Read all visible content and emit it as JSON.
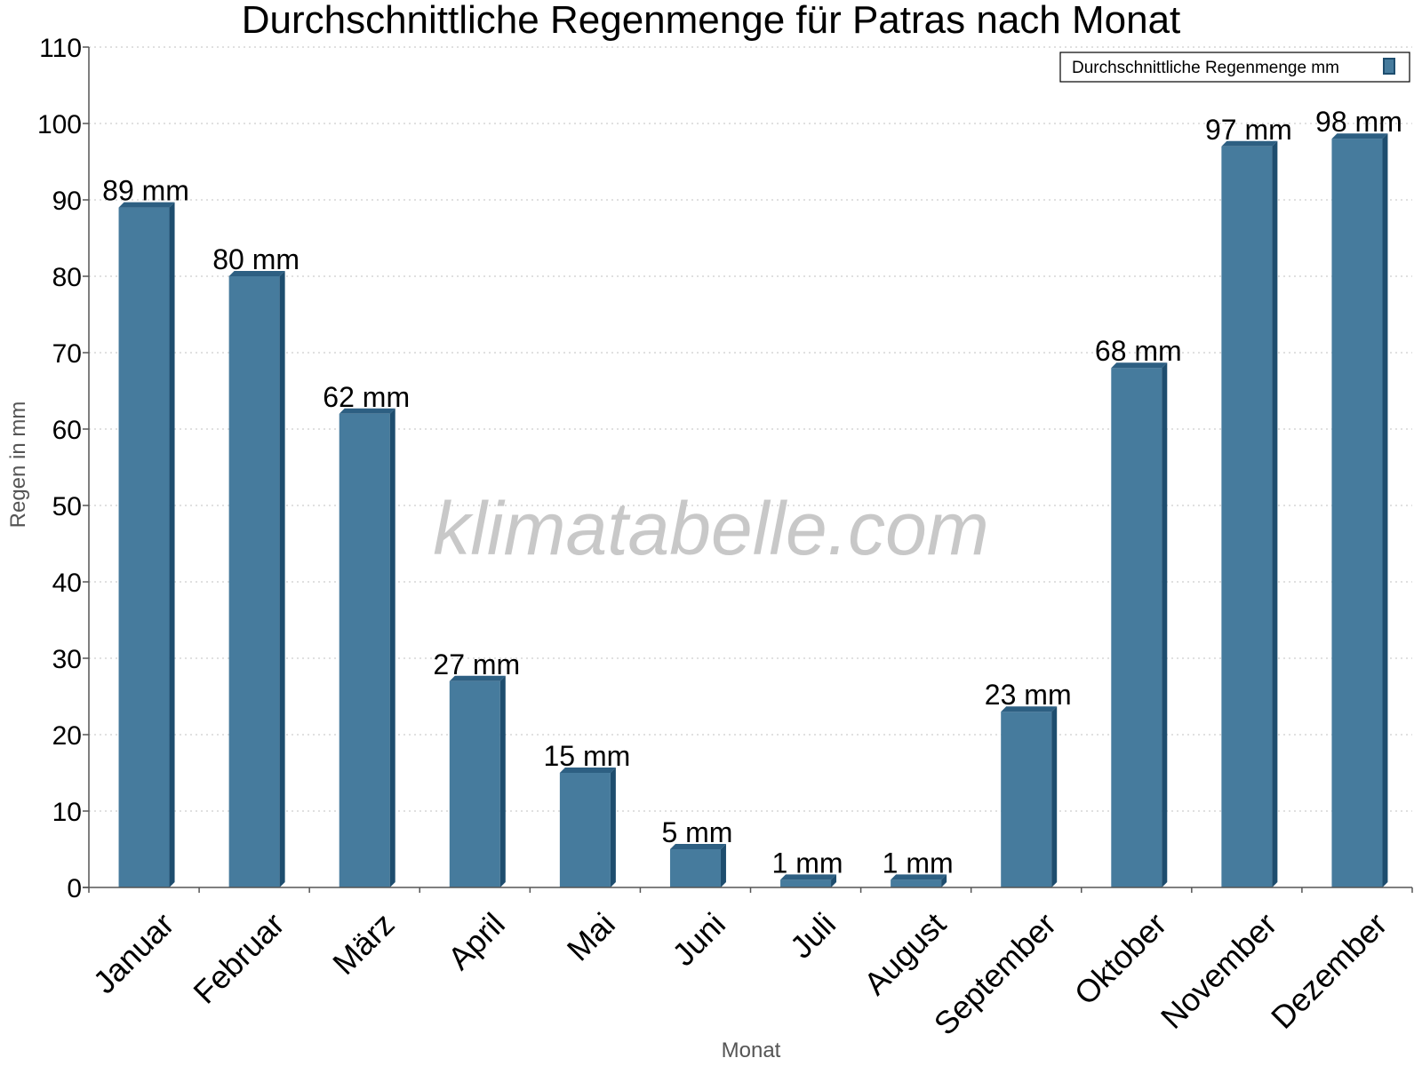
{
  "chart_data": {
    "type": "bar",
    "title": "Durchschnittliche Regenmenge für Patras nach Monat",
    "xlabel": "Monat",
    "ylabel": "Regen in mm",
    "ylim": [
      0,
      110
    ],
    "yticks": [
      0,
      10,
      20,
      30,
      40,
      50,
      60,
      70,
      80,
      90,
      100,
      110
    ],
    "grid": true,
    "legend_position": "top-right",
    "categories": [
      "Januar",
      "Februar",
      "März",
      "April",
      "Mai",
      "Juni",
      "Juli",
      "August",
      "September",
      "Oktober",
      "November",
      "Dezember"
    ],
    "series": [
      {
        "name": "Durchschnittliche Regenmenge mm",
        "values": [
          89,
          80,
          62,
          27,
          15,
          5,
          1,
          1,
          23,
          68,
          97,
          98
        ],
        "labels": [
          "89 mm",
          "80 mm",
          "62 mm",
          "27 mm",
          "15 mm",
          "5 mm",
          "1 mm",
          "1 mm",
          "23 mm",
          "68 mm",
          "97 mm",
          "98 mm"
        ]
      }
    ],
    "colors": {
      "bar": "#467b9d",
      "bar_side": "#1e4d6e",
      "bar_top": "#2d5f82",
      "grid": "#c0c0c0",
      "axis": "#555555"
    }
  },
  "watermark": "klimatabelle.com"
}
